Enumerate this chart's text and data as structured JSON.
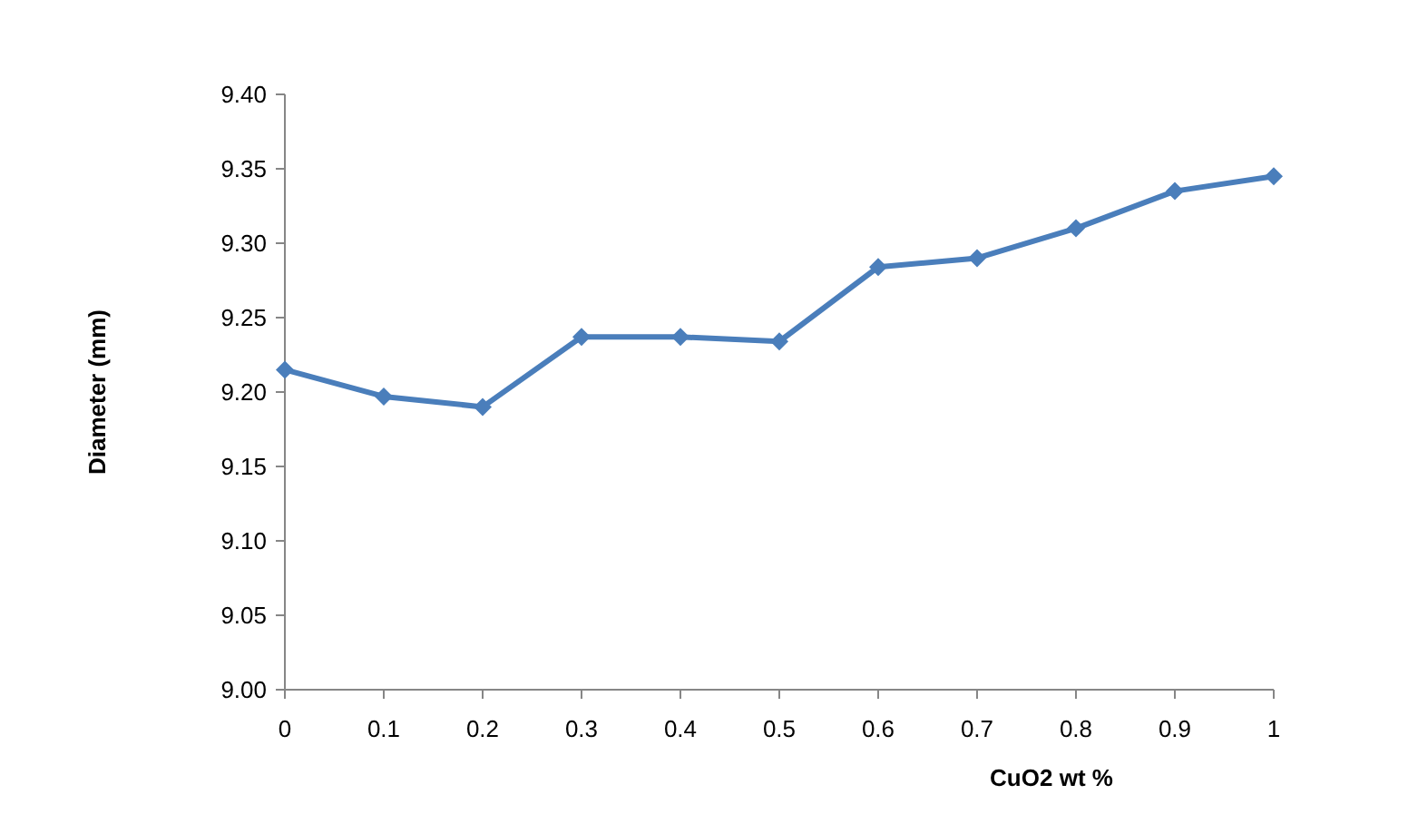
{
  "chart_data": {
    "type": "line",
    "xlabel": "CuO2 wt %",
    "ylabel": "Diameter (mm)",
    "x": [
      0,
      0.1,
      0.2,
      0.3,
      0.4,
      0.5,
      0.6,
      0.7,
      0.8,
      0.9,
      1
    ],
    "series": [
      {
        "color": "#4a7ebb",
        "values": [
          9.215,
          9.197,
          9.19,
          9.237,
          9.237,
          9.234,
          9.284,
          9.29,
          9.31,
          9.335,
          9.345
        ]
      }
    ],
    "xlim": [
      0,
      1
    ],
    "xticks": [
      0,
      0.1,
      0.2,
      0.3,
      0.4,
      0.5,
      0.6,
      0.7,
      0.8,
      0.9,
      1
    ],
    "ylim": [
      9.0,
      9.4
    ],
    "yticks": [
      {
        "value": 9.0,
        "label": "9.00"
      },
      {
        "value": 9.05,
        "label": "9.05"
      },
      {
        "value": 9.1,
        "label": "9.10"
      },
      {
        "value": 9.15,
        "label": "9.15"
      },
      {
        "value": 9.2,
        "label": "9.20"
      },
      {
        "value": 9.25,
        "label": "9.25"
      },
      {
        "value": 9.3,
        "label": "9.30"
      },
      {
        "value": 9.35,
        "label": "9.35"
      },
      {
        "value": 9.4,
        "label": "9.40"
      }
    ],
    "grid": false,
    "marker": "diamond",
    "line_style": "solid"
  }
}
